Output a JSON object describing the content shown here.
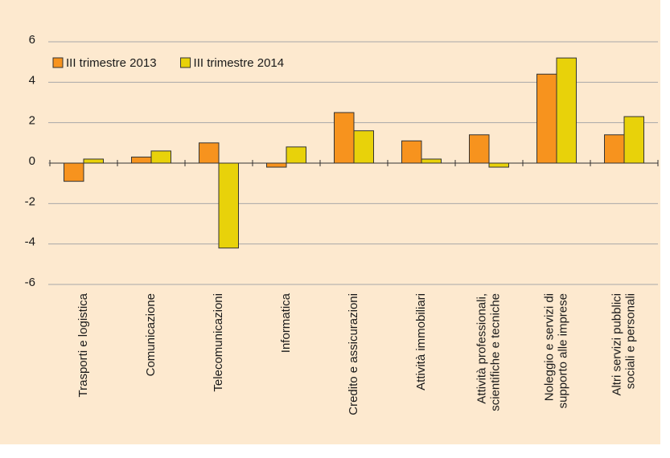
{
  "chart_data": {
    "type": "bar",
    "categories": [
      "Trasporti e logistica",
      "Comunicazione",
      "Telecomunicazioni",
      "Informatica",
      "Credito e assicurazioni",
      "Attività immobiliari",
      "Attività professionali,\nscientifiche e tecniche",
      "Noleggio e servizi di\nsupporto alle imprese",
      "Altri servizi pubblici\nsociali e personali"
    ],
    "series": [
      {
        "name": "III trimestre 2013",
        "color": "#f7931e",
        "values": [
          -0.9,
          0.3,
          1.0,
          -0.2,
          2.5,
          1.1,
          1.4,
          4.4,
          1.4
        ]
      },
      {
        "name": "III trimestre 2014",
        "color": "#e8d20a",
        "values": [
          0.2,
          0.6,
          -4.2,
          0.8,
          1.6,
          0.2,
          -0.2,
          5.2,
          2.3
        ]
      }
    ],
    "ylim": [
      -6,
      6
    ],
    "yticks": [
      -6,
      -4,
      -2,
      0,
      2,
      4,
      6
    ],
    "grid": true,
    "legend": "top-left"
  }
}
